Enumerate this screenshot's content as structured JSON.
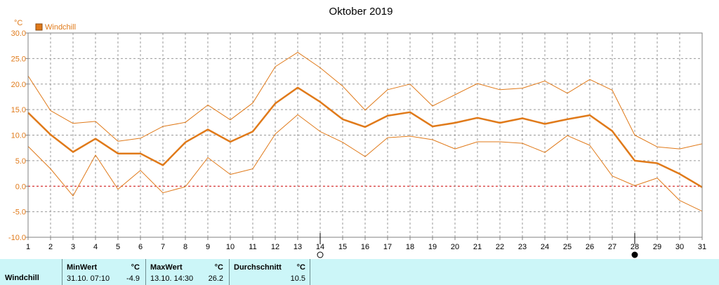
{
  "chart_data": {
    "type": "line",
    "title": "Oktober 2019",
    "unit": "°C",
    "legend": [
      {
        "label": "Windchill",
        "color": "#e07a1a"
      }
    ],
    "x": [
      1,
      2,
      3,
      4,
      5,
      6,
      7,
      8,
      9,
      10,
      11,
      12,
      13,
      14,
      15,
      16,
      17,
      18,
      19,
      20,
      21,
      22,
      23,
      24,
      25,
      26,
      27,
      28,
      29,
      30,
      31
    ],
    "xlim": [
      1,
      31
    ],
    "ylim": [
      -10,
      30
    ],
    "yticks": [
      "30.0",
      "25.0",
      "20.0",
      "15.0",
      "10.0",
      "5.0",
      "0.0",
      "-5.0",
      "-10.0"
    ],
    "grid": true,
    "zero_line_color": "#cc0000",
    "series": [
      {
        "role": "max",
        "color": "#e07a1a",
        "values": [
          21.6,
          14.8,
          12.3,
          12.7,
          8.8,
          9.4,
          11.7,
          12.5,
          15.9,
          13.0,
          16.3,
          23.4,
          26.2,
          23.2,
          19.6,
          14.9,
          18.9,
          20.0,
          15.7,
          17.9,
          20.1,
          18.9,
          19.2,
          20.6,
          18.2,
          20.9,
          18.8,
          10.0,
          7.7,
          7.3,
          8.3
        ]
      },
      {
        "role": "mean",
        "color": "#e07a1a",
        "values": [
          14.4,
          10.1,
          6.7,
          9.3,
          6.4,
          6.4,
          4.1,
          8.6,
          11.1,
          8.7,
          10.7,
          16.2,
          19.3,
          16.5,
          13.1,
          11.6,
          13.8,
          14.5,
          11.7,
          12.4,
          13.4,
          12.4,
          13.3,
          12.2,
          13.1,
          13.9,
          10.8,
          5.0,
          4.5,
          2.4,
          -0.2
        ]
      },
      {
        "role": "min",
        "color": "#e07a1a",
        "values": [
          7.8,
          3.4,
          -1.9,
          6.1,
          -0.6,
          3.1,
          -1.3,
          -0.1,
          5.6,
          2.3,
          3.4,
          10.2,
          14.0,
          10.7,
          8.6,
          5.8,
          9.5,
          9.8,
          9.1,
          7.3,
          8.7,
          8.7,
          8.4,
          6.6,
          9.9,
          8.0,
          2.0,
          0.1,
          1.6,
          -2.8,
          -4.9
        ]
      }
    ],
    "moon_phases": [
      {
        "day": 14,
        "phase": "full-moon"
      },
      {
        "day": 28,
        "phase": "new-moon"
      }
    ]
  },
  "footer": {
    "series_name": "Windchill",
    "min_label": "MinWert",
    "min_unit": "°C",
    "min_time": "31.10.  07:10",
    "min_value": "-4.9",
    "max_label": "MaxWert",
    "max_unit": "°C",
    "max_time": "13.10.  14:30",
    "max_value": "26.2",
    "avg_label": "Durchschnitt",
    "avg_unit": "°C",
    "avg_value": "10.5"
  }
}
